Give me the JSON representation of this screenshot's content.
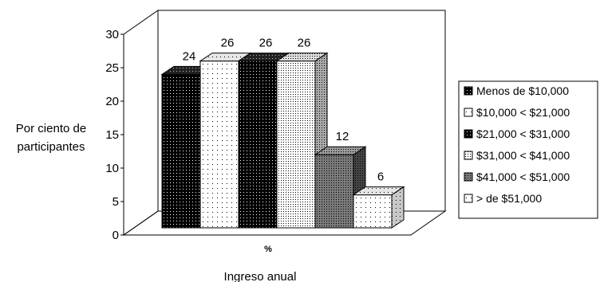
{
  "chart_data": {
    "type": "bar",
    "title": "",
    "xlabel": "Ingreso anual",
    "ylabel": "Por ciento de participantes",
    "ylabel_lines": [
      "Por ciento de",
      "participantes"
    ],
    "ylim": [
      0,
      30
    ],
    "yticks": [
      0,
      5,
      10,
      15,
      20,
      25,
      30
    ],
    "categories": [
      "%"
    ],
    "legend_position": "right",
    "grid": false,
    "style": "3d-clustered-column",
    "series": [
      {
        "name": "Menos de $10,000",
        "values": [
          24
        ],
        "pattern": "black-dots"
      },
      {
        "name": "$10,000 < $21,000",
        "values": [
          26
        ],
        "pattern": "white-dots"
      },
      {
        "name": "$21,000 < $31,000",
        "values": [
          26
        ],
        "pattern": "black-dots"
      },
      {
        "name": "$31,000 < $41,000",
        "values": [
          26
        ],
        "pattern": "light-dots"
      },
      {
        "name": "$41,000 < $51,000",
        "values": [
          12
        ],
        "pattern": "grey-dots"
      },
      {
        "name": "> de $51,000",
        "values": [
          6
        ],
        "pattern": "white-dots"
      }
    ]
  }
}
